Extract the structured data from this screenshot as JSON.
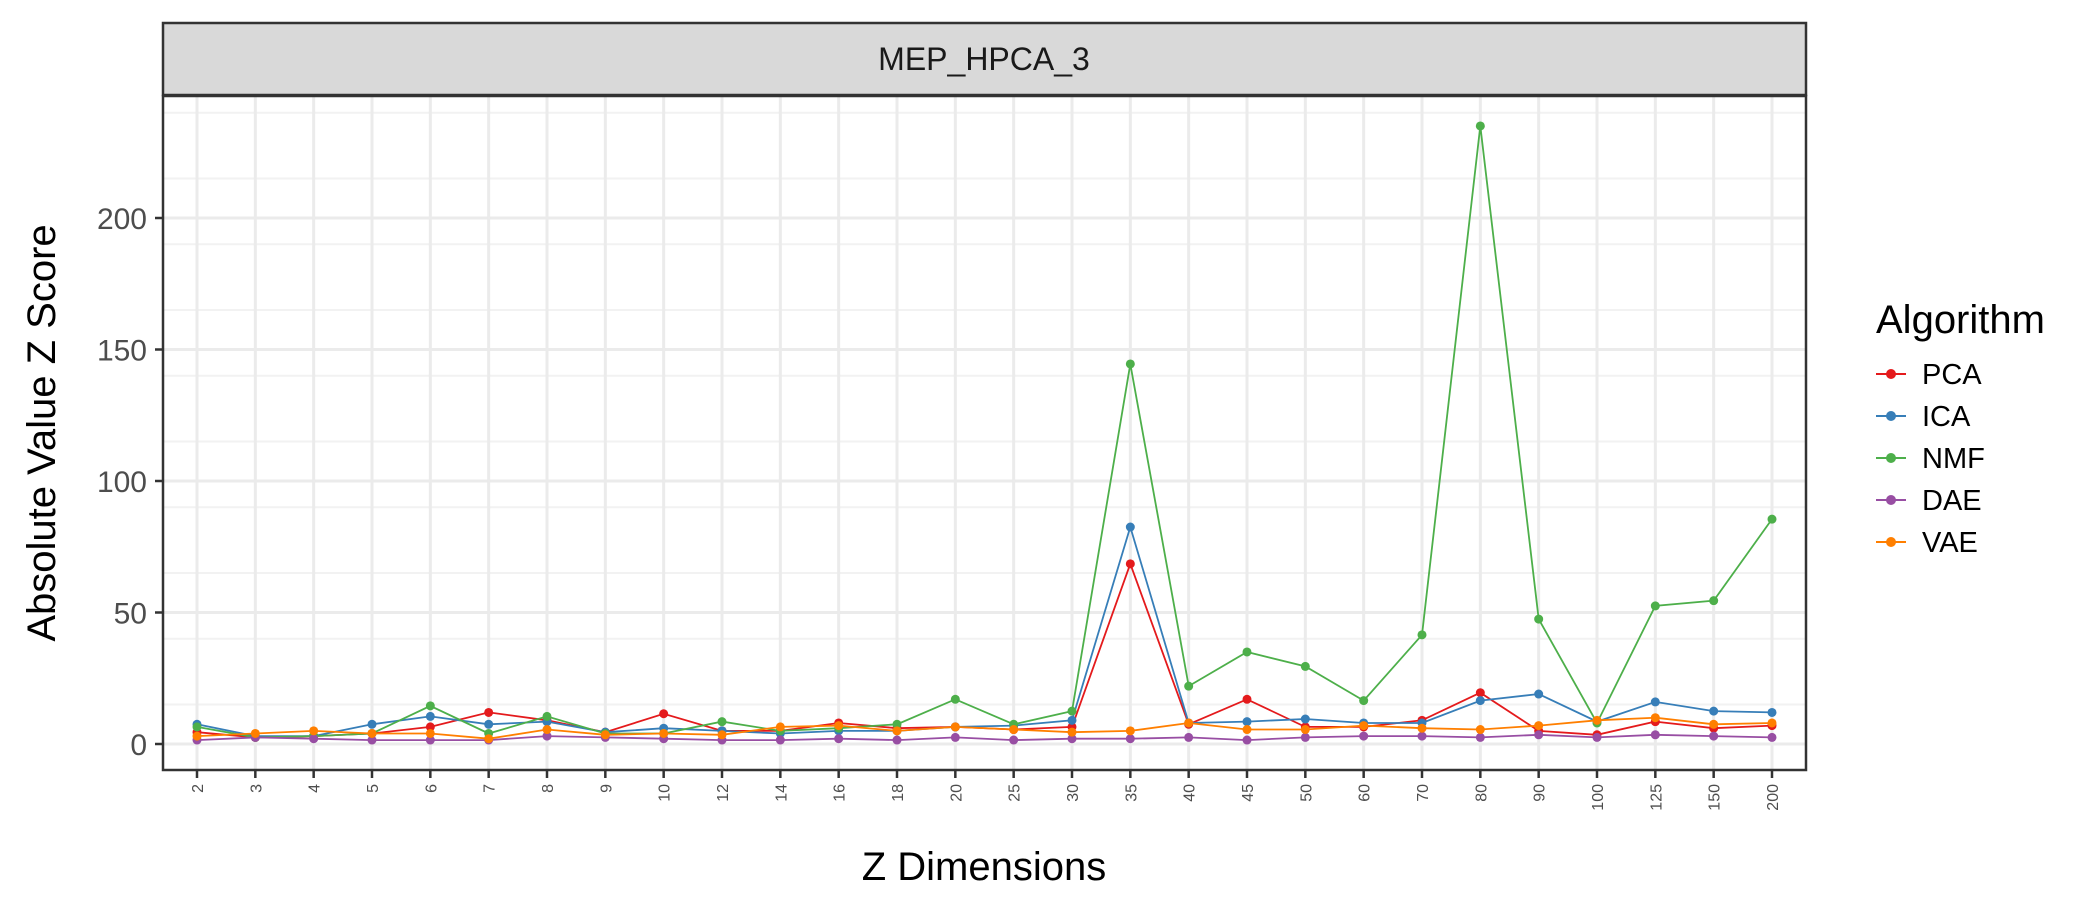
{
  "chart_data": {
    "type": "line",
    "facet_title": "MEP_HPCA_3",
    "xlabel": "Z Dimensions",
    "ylabel": "Absolute Value Z Score",
    "categories": [
      "2",
      "3",
      "4",
      "5",
      "6",
      "7",
      "8",
      "9",
      "10",
      "12",
      "14",
      "16",
      "18",
      "20",
      "25",
      "30",
      "35",
      "40",
      "45",
      "50",
      "60",
      "70",
      "80",
      "90",
      "100",
      "125",
      "150",
      "200"
    ],
    "ylim": [
      -10,
      245
    ],
    "yticks": [
      0,
      50,
      100,
      150,
      200
    ],
    "grid": true,
    "legend": {
      "title": "Algorithm",
      "position": "right"
    },
    "series": [
      {
        "name": "PCA",
        "color": "#e41a1c",
        "values": [
          4.5,
          2.5,
          3,
          4,
          6.5,
          12,
          9,
          4.5,
          11.5,
          5,
          5,
          8,
          6,
          6.5,
          5.5,
          6.5,
          68.5,
          7.5,
          17,
          6.5,
          6.5,
          9,
          19.5,
          5,
          3.5,
          8.5,
          6,
          7
        ]
      },
      {
        "name": "ICA",
        "color": "#377eb8",
        "values": [
          7.5,
          3,
          3,
          7.5,
          10.5,
          7.5,
          8.5,
          4.5,
          6,
          5,
          4,
          5,
          5,
          6.5,
          7,
          9,
          82.5,
          8,
          8.5,
          9.5,
          8,
          8,
          16.5,
          19,
          8.5,
          16,
          12.5,
          12
        ]
      },
      {
        "name": "NMF",
        "color": "#4daf4a",
        "values": [
          6.5,
          2.5,
          3,
          4,
          14.5,
          4,
          10.5,
          4,
          4,
          8.5,
          5,
          6,
          7.5,
          17,
          7.5,
          12.5,
          144.5,
          22,
          35,
          29.5,
          16.5,
          41.5,
          235,
          47.5,
          8,
          52.5,
          54.5,
          85.5
        ]
      },
      {
        "name": "DAE",
        "color": "#984ea3",
        "values": [
          1.5,
          2.5,
          2,
          1.5,
          1.5,
          1.5,
          3,
          2.5,
          2,
          1.5,
          1.5,
          2,
          1.5,
          2.5,
          1.5,
          2,
          2,
          2.5,
          1.5,
          2.5,
          3,
          3,
          2.5,
          3.5,
          2.5,
          3.5,
          3,
          2.5
        ]
      },
      {
        "name": "VAE",
        "color": "#ff7f00",
        "values": [
          3,
          4,
          5,
          4,
          4,
          2,
          5.5,
          3.5,
          4,
          3.5,
          6.5,
          7,
          5,
          6.5,
          5.5,
          4.5,
          5,
          8,
          5.5,
          5.5,
          7,
          6,
          5.5,
          7,
          9,
          10,
          7.5,
          8
        ]
      }
    ]
  }
}
